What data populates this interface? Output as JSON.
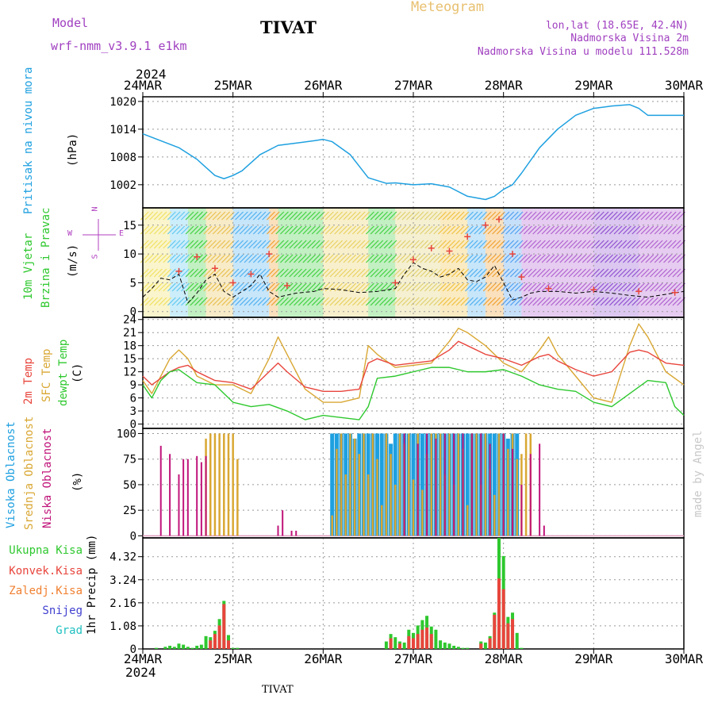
{
  "header": {
    "model_label": "Model",
    "model_name": "wrf-nmm_v3.9.1 e1km",
    "station": "TIVAT",
    "product": "Meteogram",
    "coords": "lon,lat (18.65E, 42.4N)",
    "elevation": "Nadmorska Visina 2m",
    "model_elevation": "Nadmorska Visina u modelu 111.528m",
    "year_top": "2024",
    "year_bottom": "2024",
    "footer_station": "TIVAT",
    "watermark": "made by Angel"
  },
  "colors": {
    "pressure": "#1ea0e0",
    "temp2m": "#e8453c",
    "sfc": "#d9a733",
    "dewpt": "#2ec82e",
    "high_cloud": "#1ea0e0",
    "mid_cloud": "#d9a733",
    "low_cloud": "#c0147a",
    "total_precip": "#2ec82e",
    "conv_precip": "#e8453c",
    "frozen": "#f08030",
    "snow": "#4040d0",
    "hail": "#20c0c0",
    "wind_label": "#2ec82e",
    "compass": "#b040c0",
    "header_purple": "#a040c0",
    "header_gold": "#e8c070"
  },
  "chart_data": {
    "type": "line",
    "x_ticks": [
      "24MAR",
      "25MAR",
      "26MAR",
      "27MAR",
      "28MAR",
      "29MAR",
      "30MAR"
    ],
    "panels": [
      {
        "id": "pressure",
        "ylabel": "(hPa)",
        "side_labels": [
          "Pritisak na nivou mora"
        ],
        "yticks": [
          "1020",
          "1014",
          "1008",
          "1002"
        ],
        "ylim": [
          997,
          1021
        ],
        "series": [
          {
            "name": "Pritisak na nivou mora",
            "x": [
              0,
              0.2,
              0.4,
              0.6,
              0.8,
              0.9,
              1.0,
              1.1,
              1.3,
              1.5,
              1.7,
              1.9,
              2.0,
              2.1,
              2.3,
              2.5,
              2.7,
              2.8,
              3.0,
              3.2,
              3.4,
              3.6,
              3.8,
              3.9,
              4.0,
              4.1,
              4.2,
              4.4,
              4.6,
              4.8,
              5.0,
              5.2,
              5.4,
              5.5,
              5.6,
              5.8,
              6.0
            ],
            "y": [
              1013,
              1011.5,
              1010,
              1007.5,
              1004,
              1003.3,
              1004,
              1005,
              1008.5,
              1010.5,
              1011,
              1011.5,
              1011.8,
              1011.3,
              1008.5,
              1003.5,
              1002.3,
              1002.4,
              1002,
              1002.2,
              1001.5,
              999.5,
              998.8,
              999.5,
              1001,
              1002,
              1004.5,
              1010,
              1014,
              1017,
              1018.5,
              1019,
              1019.3,
              1018.5,
              1017,
              1017,
              1017
            ]
          }
        ]
      },
      {
        "id": "wind",
        "ylabel": "(m/s)",
        "side_labels": [
          "10m Vjetar",
          "Brzina i Pravac"
        ],
        "compass": [
          "N",
          "W",
          "E",
          "S"
        ],
        "yticks": [
          "15",
          "10",
          "5",
          "0"
        ],
        "ylim": [
          -1,
          18
        ],
        "series": [
          {
            "name": "Brzina",
            "x": [
              0,
              0.1,
              0.2,
              0.3,
              0.4,
              0.5,
              0.6,
              0.7,
              0.8,
              0.9,
              1.0,
              1.2,
              1.3,
              1.4,
              1.5,
              1.7,
              1.9,
              2.0,
              2.2,
              2.4,
              2.6,
              2.8,
              2.9,
              3.0,
              3.1,
              3.2,
              3.3,
              3.4,
              3.5,
              3.6,
              3.7,
              3.8,
              3.9,
              4.0,
              4.1,
              4.2,
              4.3,
              4.4,
              4.6,
              4.8,
              5.0,
              5.2,
              5.4,
              5.6,
              5.8,
              6.0
            ],
            "y": [
              2.5,
              4,
              5.8,
              5.5,
              6.5,
              1.5,
              3.2,
              5.5,
              6.5,
              3.5,
              2.5,
              4.5,
              6.5,
              3.5,
              2.5,
              3.2,
              3.5,
              4,
              3.8,
              3.3,
              3.5,
              4,
              6.5,
              8.5,
              7.5,
              7,
              6,
              6.5,
              7.5,
              5.5,
              5.2,
              6,
              8,
              5,
              2,
              2.5,
              3.2,
              3.5,
              3.5,
              3.2,
              3.5,
              3.2,
              2.8,
              2.5,
              3,
              3.5
            ]
          },
          {
            "name": "Udari",
            "x": [
              0.4,
              0.6,
              0.8,
              1.0,
              1.2,
              1.4,
              1.6,
              2.8,
              3.0,
              3.2,
              3.4,
              3.6,
              3.8,
              3.95,
              4.1,
              4.2,
              4.5,
              5.0,
              5.5,
              5.9
            ],
            "y": [
              7,
              9.5,
              7.5,
              5,
              6.5,
              10,
              4.5,
              5,
              9,
              11,
              10.5,
              13,
              15,
              16,
              10,
              6,
              4,
              3.8,
              3.5,
              3.3
            ]
          }
        ]
      },
      {
        "id": "temperature",
        "ylabel": "(C)",
        "side_labels": [
          "2m Temp",
          "SFC Temp",
          "dewpt Temp"
        ],
        "yticks": [
          "24",
          "21",
          "18",
          "15",
          "12",
          "9",
          "6",
          "3",
          "0"
        ],
        "ylim": [
          -1,
          24.5
        ],
        "series": [
          {
            "name": "2m Temp",
            "x": [
              0,
              0.1,
              0.2,
              0.3,
              0.4,
              0.5,
              0.6,
              0.8,
              1.0,
              1.2,
              1.4,
              1.5,
              1.6,
              1.8,
              2.0,
              2.2,
              2.4,
              2.5,
              2.6,
              2.8,
              3.0,
              3.2,
              3.4,
              3.5,
              3.6,
              3.8,
              4.0,
              4.2,
              4.4,
              4.5,
              4.6,
              4.8,
              5.0,
              5.2,
              5.4,
              5.5,
              5.6,
              5.8,
              6.0
            ],
            "y": [
              11,
              9,
              10.5,
              12,
              13,
              13.5,
              12,
              10,
              9.5,
              8,
              12,
              14,
              12,
              8.5,
              7.5,
              7.5,
              8,
              14,
              15,
              13.5,
              14,
              14.5,
              17,
              19,
              18,
              16,
              15,
              13.5,
              15.5,
              16,
              14.5,
              12.5,
              11,
              12,
              16.5,
              17,
              16.5,
              14,
              13.5
            ]
          },
          {
            "name": "SFC Temp",
            "x": [
              0,
              0.1,
              0.2,
              0.3,
              0.4,
              0.5,
              0.6,
              0.8,
              1.0,
              1.2,
              1.4,
              1.5,
              1.6,
              1.8,
              2.0,
              2.2,
              2.4,
              2.5,
              2.6,
              2.8,
              3.0,
              3.2,
              3.4,
              3.5,
              3.6,
              3.8,
              4.0,
              4.2,
              4.4,
              4.5,
              4.6,
              4.8,
              5.0,
              5.2,
              5.4,
              5.5,
              5.6,
              5.8,
              6.0
            ],
            "y": [
              10,
              7,
              11,
              15,
              17,
              15,
              11,
              9,
              9,
              7,
              15,
              20,
              16,
              8,
              5,
              5,
              6,
              18,
              16,
              13,
              13.5,
              14,
              19,
              22,
              21,
              18,
              14,
              12,
              17,
              20,
              16,
              11,
              6,
              5,
              18,
              23,
              20,
              12,
              9
            ]
          },
          {
            "name": "dewpt Temp",
            "x": [
              0,
              0.1,
              0.2,
              0.3,
              0.4,
              0.5,
              0.6,
              0.8,
              1.0,
              1.2,
              1.4,
              1.6,
              1.8,
              2.0,
              2.2,
              2.4,
              2.5,
              2.6,
              2.8,
              3.0,
              3.2,
              3.4,
              3.6,
              3.8,
              4.0,
              4.2,
              4.4,
              4.6,
              4.8,
              5.0,
              5.2,
              5.4,
              5.6,
              5.8,
              5.9,
              6.0
            ],
            "y": [
              9,
              6,
              10,
              12,
              12.5,
              11,
              9.5,
              9,
              5,
              4,
              4.5,
              3,
              1,
              2,
              1.5,
              1,
              4,
              10.5,
              11,
              12,
              13,
              13,
              12,
              12,
              12.5,
              11,
              9,
              8,
              7.5,
              5,
              4,
              7,
              10,
              9.5,
              4,
              2
            ]
          }
        ]
      },
      {
        "id": "clouds",
        "ylabel": "(%)",
        "side_labels": [
          "Visoka Oblacnost",
          "Srednja Oblacnost",
          "Niska Oblacnost"
        ],
        "yticks": [
          "100",
          "75",
          "50",
          "25",
          "0"
        ],
        "ylim": [
          0,
          100
        ],
        "series": [
          {
            "name": "Visoka Oblacnost",
            "x": [
              2.1,
              2.15,
              2.2,
              2.25,
              2.3,
              2.35,
              2.4,
              2.45,
              2.5,
              2.55,
              2.6,
              2.65,
              2.7,
              2.75,
              2.8,
              2.85,
              2.9,
              2.95,
              3.0,
              3.05,
              3.1,
              3.15,
              3.2,
              3.25,
              3.3,
              3.35,
              3.4,
              3.45,
              3.5,
              3.55,
              3.6,
              3.65,
              3.7,
              3.75,
              3.8,
              3.85,
              3.9,
              3.95,
              4.0,
              4.05,
              4.1,
              4.15
            ],
            "y": [
              100,
              100,
              100,
              100,
              100,
              95,
              100,
              100,
              100,
              100,
              100,
              100,
              100,
              90,
              100,
              100,
              100,
              100,
              100,
              100,
              100,
              100,
              100,
              100,
              100,
              100,
              100,
              100,
              100,
              100,
              100,
              100,
              100,
              100,
              100,
              100,
              100,
              100,
              100,
              95,
              100,
              100
            ]
          },
          {
            "name": "Srednja Oblacnost",
            "x": [
              0.7,
              0.75,
              0.8,
              0.85,
              0.9,
              0.95,
              1.0,
              1.05,
              2.1,
              2.15,
              2.2,
              2.25,
              2.3,
              2.35,
              2.4,
              2.45,
              2.5,
              2.55,
              2.6,
              2.65,
              2.7,
              2.75,
              2.8,
              2.85,
              2.9,
              2.95,
              3.0,
              3.05,
              3.1,
              3.15,
              3.2,
              3.25,
              3.3,
              3.35,
              3.4,
              3.45,
              3.5,
              3.55,
              3.6,
              3.65,
              3.7,
              3.75,
              3.8,
              3.85,
              3.9,
              3.95,
              4.0,
              4.05,
              4.1,
              4.15,
              4.2,
              4.25,
              4.3
            ],
            "y": [
              95,
              100,
              100,
              100,
              100,
              100,
              100,
              75,
              20,
              85,
              100,
              60,
              100,
              95,
              80,
              100,
              60,
              100,
              75,
              30,
              100,
              80,
              50,
              100,
              90,
              100,
              55,
              100,
              45,
              80,
              100,
              100,
              100,
              60,
              100,
              50,
              100,
              85,
              30,
              100,
              100,
              50,
              100,
              65,
              40,
              100,
              100,
              85,
              100,
              75,
              80,
              100,
              100
            ]
          },
          {
            "name": "Niska Oblacnost",
            "x": [
              0.2,
              0.3,
              0.4,
              0.45,
              0.5,
              0.6,
              0.65,
              0.7,
              1.5,
              1.55,
              1.65,
              1.7,
              2.9,
              3.05,
              3.15,
              3.25,
              3.35,
              3.45,
              3.55,
              3.65,
              3.75,
              3.85,
              4.0,
              4.1,
              4.2,
              4.3,
              4.4,
              4.45
            ],
            "y": [
              88,
              80,
              60,
              75,
              75,
              78,
              72,
              78,
              10,
              25,
              5,
              5,
              100,
              90,
              100,
              95,
              100,
              100,
              100,
              100,
              100,
              90,
              100,
              85,
              50,
              80,
              90,
              10
            ]
          }
        ]
      },
      {
        "id": "precip",
        "ylabel": "1hr Precip (mm)",
        "side_labels": [
          "Ukupna Kisa",
          "Konvek.Kisa",
          "Zaledj.Kisa",
          "Snijeg",
          "Grad"
        ],
        "yticks": [
          "4.32",
          "3.24",
          "2.16",
          "1.08",
          "0"
        ],
        "ylim": [
          0,
          5.2
        ],
        "series": [
          {
            "name": "Ukupna Kisa",
            "x": [
              0.15,
              0.25,
              0.3,
              0.35,
              0.4,
              0.45,
              0.5,
              0.55,
              0.6,
              0.65,
              0.7,
              0.75,
              0.8,
              0.85,
              0.9,
              0.95,
              1.0,
              1.05,
              2.7,
              2.75,
              2.8,
              2.85,
              2.9,
              2.95,
              3.0,
              3.05,
              3.1,
              3.15,
              3.2,
              3.25,
              3.3,
              3.35,
              3.4,
              3.45,
              3.5,
              3.55,
              3.6,
              3.75,
              3.8,
              3.85,
              3.9,
              3.95,
              4.0,
              4.05,
              4.1,
              4.15,
              4.2
            ],
            "y": [
              0.05,
              0.1,
              0.15,
              0.1,
              0.25,
              0.2,
              0.1,
              0.05,
              0.15,
              0.2,
              0.6,
              0.55,
              0.85,
              1.4,
              2.25,
              0.65,
              0.05,
              0.05,
              0.35,
              0.7,
              0.55,
              0.35,
              0.3,
              0.9,
              0.75,
              1.1,
              1.35,
              1.55,
              1.05,
              0.9,
              0.4,
              0.3,
              0.25,
              0.15,
              0.1,
              0.05,
              0.05,
              0.35,
              0.3,
              0.6,
              1.7,
              5.2,
              4.35,
              1.5,
              1.7,
              0.75,
              0.05
            ]
          },
          {
            "name": "Konvek.Kisa",
            "x": [
              0.75,
              0.8,
              0.85,
              0.9,
              0.95,
              2.75,
              2.85,
              2.95,
              3.0,
              3.05,
              3.1,
              3.15,
              3.2,
              3.75,
              3.85,
              3.9,
              3.95,
              4.0,
              4.05,
              4.1
            ],
            "y": [
              0.4,
              0.7,
              1.1,
              2.1,
              0.4,
              0.5,
              0.25,
              0.6,
              0.5,
              0.7,
              0.9,
              1.0,
              0.7,
              0.25,
              0.5,
              1.6,
              3.3,
              2.8,
              1.2,
              1.4
            ]
          }
        ]
      }
    ]
  }
}
